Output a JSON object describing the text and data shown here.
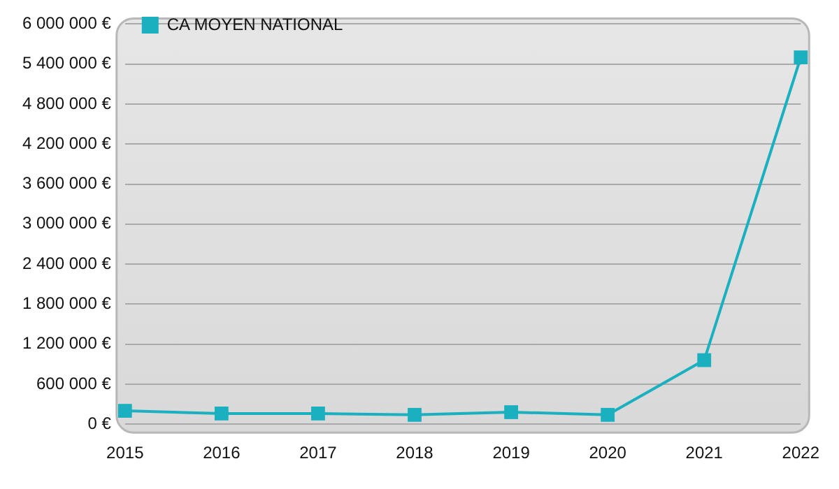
{
  "chart_data": {
    "type": "line",
    "categories": [
      "2015",
      "2016",
      "2017",
      "2018",
      "2019",
      "2020",
      "2021",
      "2022"
    ],
    "series": [
      {
        "name": "CA MOYEN NATIONAL",
        "color": "#1ab0c0",
        "values": [
          200000,
          160000,
          160000,
          140000,
          180000,
          140000,
          960000,
          5500000
        ]
      }
    ],
    "ylim": [
      0,
      6000000
    ],
    "yticks": [
      {
        "value": 0,
        "label": "0 €"
      },
      {
        "value": 600000,
        "label": "600 000 €"
      },
      {
        "value": 1200000,
        "label": "1 200 000 €"
      },
      {
        "value": 1800000,
        "label": "1 800 000 €"
      },
      {
        "value": 2400000,
        "label": "2 400 000 €"
      },
      {
        "value": 3000000,
        "label": "3 000 000 €"
      },
      {
        "value": 3600000,
        "label": "3 600 000 €"
      },
      {
        "value": 4200000,
        "label": "4 200 000 €"
      },
      {
        "value": 4800000,
        "label": "4 800 000 €"
      },
      {
        "value": 5400000,
        "label": "5 400 000 €"
      },
      {
        "value": 6000000,
        "label": "6 000 000 €"
      }
    ],
    "grid": "y",
    "legend": "top left",
    "marker": "square",
    "line_style": "solid"
  }
}
